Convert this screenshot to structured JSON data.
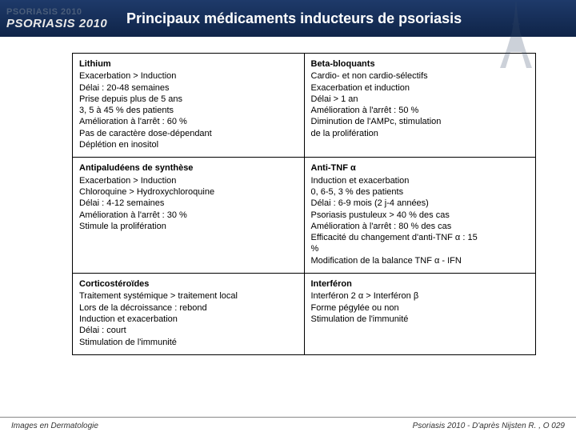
{
  "header": {
    "logo_faint": "PSORIASIS 2010",
    "logo_main": "PSORIASIS 2010",
    "title": "Principaux médicaments inducteurs de psoriasis",
    "bg_gradient_top": "#1e3a6a",
    "bg_gradient_bottom": "#0f2448",
    "title_color": "#ffffff"
  },
  "table": {
    "border_color": "#000000",
    "cell_fontsize": 11,
    "rows": [
      {
        "left": {
          "title": "Lithium",
          "lines": [
            "Exacerbation > Induction",
            "Délai : 20-48 semaines",
            "Prise depuis plus de 5 ans",
            "3, 5 à 45 % des patients",
            "Amélioration à l'arrêt : 60 %",
            "Pas de caractère dose-dépendant",
            "Déplétion en inositol"
          ]
        },
        "right": {
          "title": "Beta-bloquants",
          "lines": [
            "Cardio- et non cardio-sélectifs",
            "Exacerbation et induction",
            "Délai > 1 an",
            "Amélioration à l'arrêt : 50 %",
            "Diminution de l'AMPc, stimulation",
            "de la prolifération"
          ]
        }
      },
      {
        "left": {
          "title": "Antipaludéens de synthèse",
          "lines": [
            "Exacerbation > Induction",
            "Chloroquine > Hydroxychloroquine",
            "Délai : 4-12 semaines",
            "Amélioration à l'arrêt : 30 %",
            "Stimule la prolifération"
          ]
        },
        "right": {
          "title": "Anti-TNF α",
          "lines": [
            "Induction et exacerbation",
            "0, 6-5, 3 % des patients",
            "Délai : 6-9 mois (2 j-4 années)",
            "Psoriasis pustuleux > 40 % des cas",
            "Amélioration à l'arrêt : 80 % des cas",
            "Efficacité du changement d'anti-TNF α : 15",
            "%",
            "Modification de la balance TNF α - IFN"
          ]
        }
      },
      {
        "left": {
          "title": "Corticostéroïdes",
          "lines": [
            "Traitement systémique > traitement local",
            "Lors de la décroissance : rebond",
            "Induction et exacerbation",
            "Délai : court",
            "Stimulation de l'immunité"
          ]
        },
        "right": {
          "title": "Interféron",
          "lines": [
            "Interféron 2 α > Interféron  β",
            "Forme pégylée ou non",
            "Stimulation de l'immunité"
          ]
        }
      }
    ]
  },
  "footer": {
    "left": "Images en Dermatologie",
    "right": "Psoriasis 2010 - D'après Nijsten R. , O 029",
    "line_color": "#888888",
    "text_color": "#333333"
  }
}
